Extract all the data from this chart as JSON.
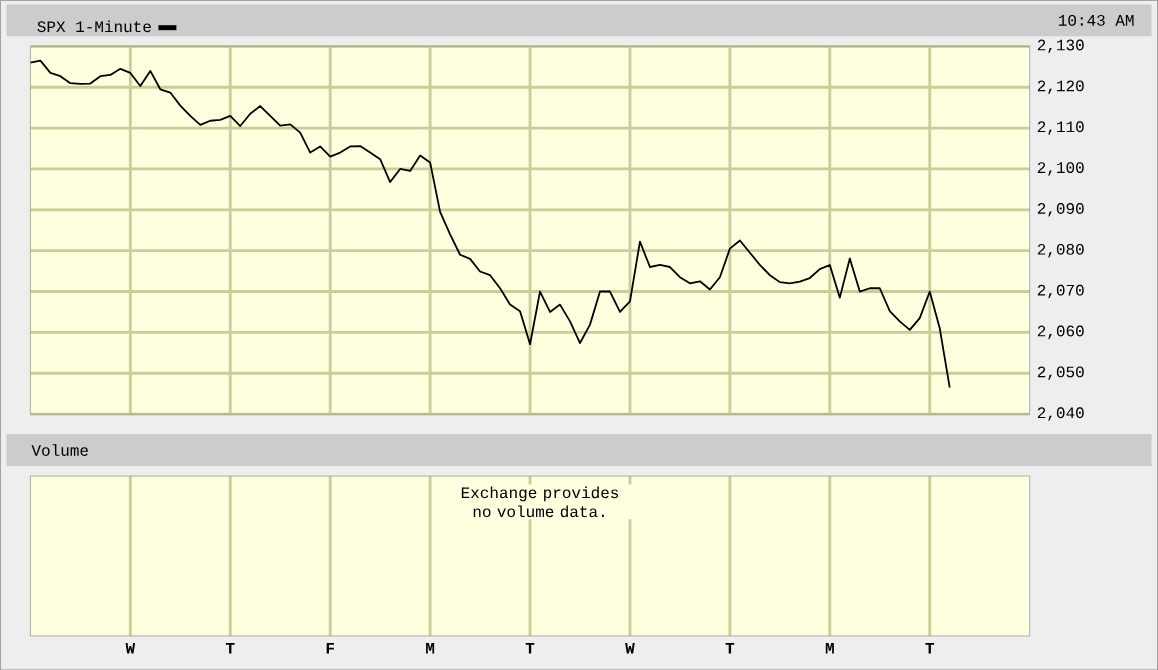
{
  "chart_data": [
    {
      "type": "line",
      "annotations": [
        "10:43 AM"
      ],
      "ylim": [
        2040,
        2130
      ],
      "categories": [
        null,
        null,
        null,
        null,
        null,
        null,
        null,
        null,
        null,
        null,
        null,
        null,
        null,
        null,
        null,
        null,
        null,
        null,
        null,
        null,
        null,
        null,
        null,
        null,
        null,
        null,
        null,
        null,
        null,
        null,
        null,
        null,
        null,
        null,
        null,
        null,
        null,
        null,
        null,
        null,
        null,
        null,
        null,
        null,
        null,
        null,
        null,
        null,
        null,
        null,
        null,
        null,
        null,
        null,
        null,
        null,
        null,
        null,
        null,
        null,
        null,
        null,
        null,
        null,
        null,
        null,
        null,
        null,
        null,
        null,
        null,
        null,
        null,
        null,
        null,
        null,
        null,
        null,
        null,
        null,
        null,
        null,
        null,
        null,
        null,
        null,
        null,
        null,
        null,
        null,
        null,
        null,
        null,
        null,
        null,
        null,
        null,
        null,
        null,
        null,
        null
      ],
      "yticks": [
        {
          "value": 2040,
          "label": "2,040"
        },
        {
          "value": 2050,
          "label": "2,050"
        },
        {
          "value": 2060,
          "label": "2,060"
        },
        {
          "value": 2070,
          "label": "2,070"
        },
        {
          "value": 2080,
          "label": "2,080"
        },
        {
          "value": 2090,
          "label": "2,090"
        },
        {
          "value": 2100,
          "label": "2,100"
        },
        {
          "value": 2110,
          "label": "2,110"
        },
        {
          "value": 2120,
          "label": "2,120"
        },
        {
          "value": 2130,
          "label": "2,130"
        }
      ],
      "grid": true,
      "legend": "top left",
      "marker": "none",
      "line_style": "solid",
      "series": [
        {
          "name": "SPX 1-Minute",
          "color": "#000000",
          "values": [
            2126.0,
            2126.5,
            2123.5,
            2122.7,
            2121.0,
            2120.8,
            2120.9,
            2122.7,
            2123.0,
            2124.5,
            2123.5,
            2120.3,
            2124.0,
            2119.5,
            2118.7,
            2115.5,
            2113.0,
            2110.8,
            2111.8,
            2112.0,
            2113.0,
            2110.5,
            2113.5,
            2115.4,
            2113.0,
            2110.6,
            2110.9,
            2108.9,
            2104.0,
            2105.5,
            2103.0,
            2104.0,
            2105.5,
            2105.6,
            2104.0,
            2102.4,
            2096.8,
            2100.0,
            2099.5,
            2103.3,
            2101.6,
            2089.5,
            2084.0,
            2079.0,
            2078.0,
            2074.9,
            2074.0,
            2070.8,
            2066.8,
            2065.2,
            2057.1,
            2070.0,
            2065.0,
            2066.8,
            2062.7,
            2057.4,
            2061.9,
            2070.0,
            2070.0,
            2065.0,
            2067.6,
            2082.2,
            2076.0,
            2076.5,
            2076.0,
            2073.5,
            2072.0,
            2072.5,
            2070.5,
            2073.5,
            2080.5,
            2082.5,
            2079.5,
            2076.5,
            2074.0,
            2072.3,
            2072.0,
            2072.4,
            2073.3,
            2075.5,
            2076.5,
            2068.5,
            2078.1,
            2070.0,
            2070.8,
            2070.8,
            2065.2,
            2062.7,
            2060.6,
            2063.5,
            2070.0,
            2061.0,
            2046.5,
            null,
            null,
            null,
            null,
            null,
            null,
            null,
            null
          ]
        }
      ]
    },
    {
      "type": "other",
      "title": "Volume",
      "annotations": [
        "Exchange provides no volume data."
      ],
      "categories": [
        null,
        null,
        null,
        null,
        null,
        null,
        null,
        null,
        null,
        null,
        "W",
        null,
        null,
        null,
        null,
        null,
        null,
        null,
        null,
        null,
        "T",
        null,
        null,
        null,
        null,
        null,
        null,
        null,
        null,
        null,
        "F",
        null,
        null,
        null,
        null,
        null,
        null,
        null,
        null,
        null,
        "M",
        null,
        null,
        null,
        null,
        null,
        null,
        null,
        null,
        null,
        "T",
        null,
        null,
        null,
        null,
        null,
        null,
        null,
        null,
        null,
        "W",
        null,
        null,
        null,
        null,
        null,
        null,
        null,
        null,
        null,
        "T",
        null,
        null,
        null,
        null,
        null,
        null,
        null,
        null,
        null,
        "M",
        null,
        null,
        null,
        null,
        null,
        null,
        null,
        null,
        null,
        "T",
        null,
        null,
        null,
        null,
        null,
        null,
        null,
        null,
        null,
        null
      ]
    }
  ]
}
